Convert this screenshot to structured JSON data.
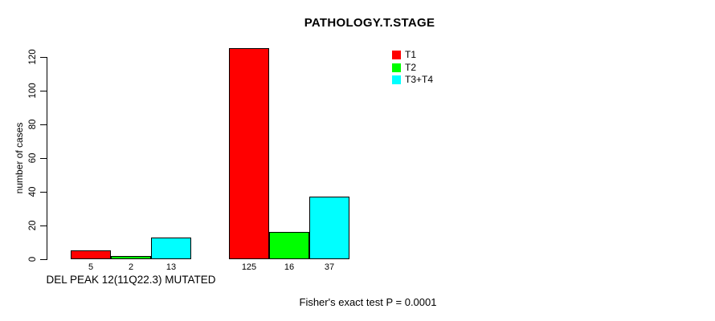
{
  "chart_data": {
    "type": "bar",
    "title": "PATHOLOGY.T.STAGE",
    "ylabel": "number of cases",
    "ylim": [
      0,
      120
    ],
    "yticks": [
      0,
      20,
      40,
      60,
      80,
      100,
      120
    ],
    "grid": false,
    "legend_position": "top-right-inside",
    "series": [
      "T1",
      "T2",
      "T3+T4"
    ],
    "series_colors": [
      "#FF0000",
      "#00FF00",
      "#00FFFF"
    ],
    "groups": [
      {
        "label": "DEL PEAK 12(11Q22.3) MUTATED",
        "values": [
          5,
          2,
          13
        ]
      },
      {
        "label": "",
        "values": [
          125,
          16,
          37
        ]
      }
    ],
    "legend": [
      {
        "label": "T1",
        "color": "#FF0000"
      },
      {
        "label": "T2",
        "color": "#00FF00"
      },
      {
        "label": "T3+T4",
        "color": "#00FFFF"
      }
    ],
    "annotation": "Fisher's exact test P = 0.0001",
    "axis_color": "#000000"
  }
}
